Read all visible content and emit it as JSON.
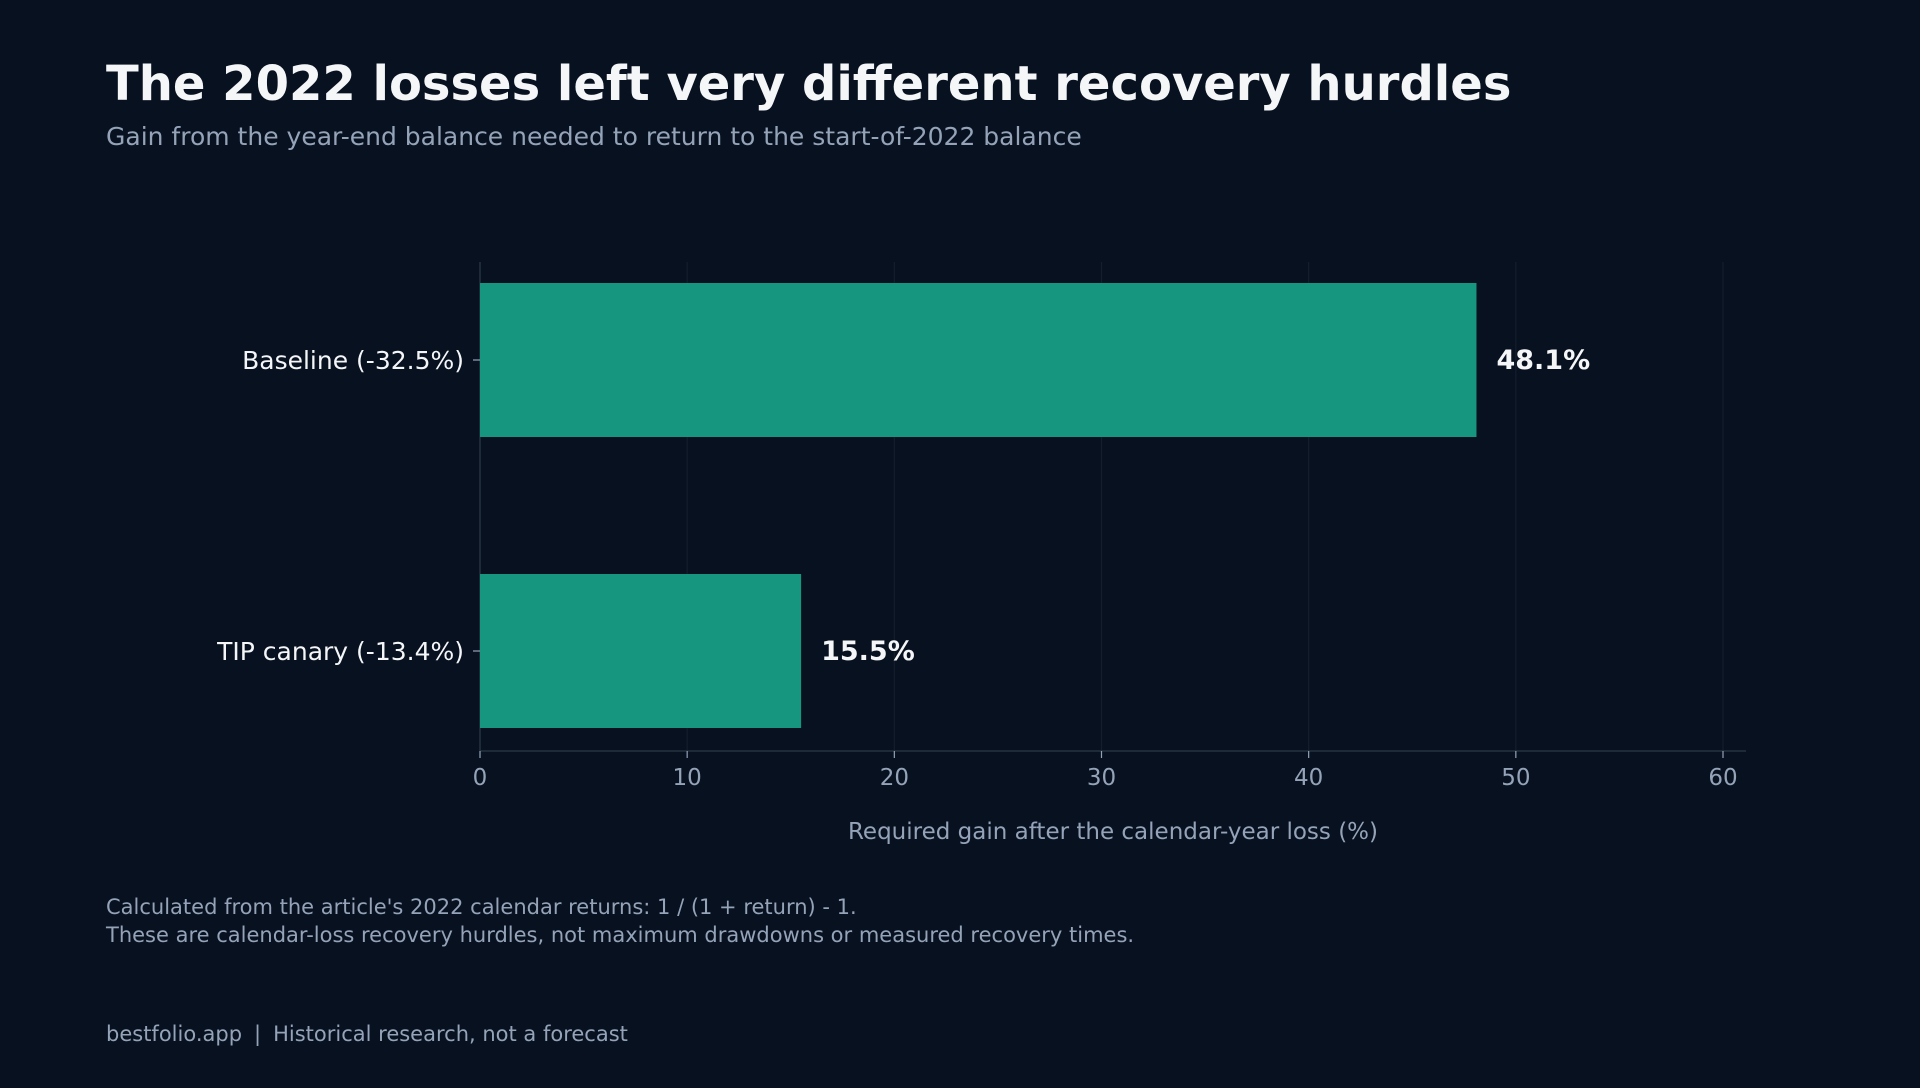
{
  "header": {
    "title": "The 2022 losses left very different recovery hurdles",
    "subtitle": "Gain from the year-end balance needed to return to the start-of-2022 balance"
  },
  "chart_data": {
    "type": "bar",
    "orientation": "horizontal",
    "categories": [
      "Baseline (-32.5%)",
      "TIP canary (-13.4%)"
    ],
    "values": [
      48.1,
      15.5
    ],
    "value_labels": [
      "48.1%",
      "15.5%"
    ],
    "xlabel": "Required gain after the calendar-year loss (%)",
    "ylabel": "",
    "xlim": [
      0,
      61
    ],
    "xticks": [
      0,
      10,
      20,
      30,
      40,
      50,
      60
    ],
    "grid": "vertical",
    "legend": "none",
    "colors": {
      "bar": "#16967f",
      "background": "#081120",
      "grid": "#141e2c",
      "axis": "#263241",
      "tick_label": "#94a3b8",
      "category_label": "#f4f6f8",
      "value_label": "#f4f6f8"
    }
  },
  "notes": [
    "Calculated from the article's 2022 calendar returns: 1 / (1 + return) - 1.",
    "These are calendar-loss recovery hurdles, not maximum drawdowns or measured recovery times."
  ],
  "footer": {
    "site": "bestfolio.app",
    "separator": "|",
    "disclaimer": "Historical research, not a forecast"
  }
}
